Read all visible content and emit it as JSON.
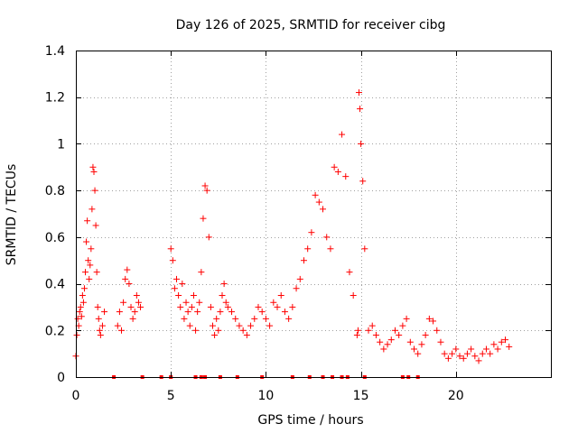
{
  "chart_data": {
    "type": "scatter",
    "title": "Day 126 of 2025, SRMTID for receiver cibg",
    "xlabel": "GPS time / hours",
    "ylabel": "SRMTID / TECUs",
    "xlim": [
      0,
      25
    ],
    "ylim": [
      0,
      1.4
    ],
    "xticks": [
      0,
      5,
      10,
      15,
      20
    ],
    "xtick_labels": [
      "0",
      "5",
      "10",
      "15",
      "20"
    ],
    "yticks": [
      0,
      0.2,
      0.4,
      0.6,
      0.8,
      1.0,
      1.2,
      1.4
    ],
    "ytick_labels": [
      "0",
      "0.2",
      "0.4",
      "0.6",
      "0.8",
      "1",
      "1.2",
      "1.4"
    ],
    "grid": true,
    "marker": "+",
    "color": "#ff0000",
    "series": [
      {
        "name": "SRMTID",
        "x": [
          0.0,
          0.05,
          0.1,
          0.15,
          0.2,
          0.25,
          0.3,
          0.35,
          0.4,
          0.45,
          0.5,
          0.55,
          0.6,
          0.65,
          0.7,
          0.75,
          0.8,
          0.85,
          0.9,
          0.95,
          1.0,
          1.05,
          1.1,
          1.15,
          1.2,
          1.25,
          1.3,
          1.4,
          1.5,
          2.2,
          2.3,
          2.4,
          2.5,
          2.6,
          2.7,
          2.8,
          2.9,
          3.0,
          3.1,
          3.2,
          3.3,
          3.4,
          5.0,
          5.1,
          5.2,
          5.3,
          5.4,
          5.5,
          5.6,
          5.7,
          5.8,
          5.9,
          6.0,
          6.1,
          6.2,
          6.3,
          6.4,
          6.5,
          6.6,
          6.7,
          6.8,
          6.9,
          7.0,
          7.1,
          7.2,
          7.3,
          7.4,
          7.5,
          7.6,
          7.7,
          7.8,
          7.9,
          8.0,
          8.2,
          8.4,
          8.6,
          8.8,
          9.0,
          9.2,
          9.4,
          9.6,
          9.8,
          10.0,
          10.2,
          10.4,
          10.6,
          10.8,
          11.0,
          11.2,
          11.4,
          11.6,
          11.8,
          12.0,
          12.2,
          12.4,
          12.6,
          12.8,
          13.0,
          13.2,
          13.4,
          13.6,
          13.8,
          14.0,
          14.2,
          14.4,
          14.6,
          14.8,
          14.85,
          14.9,
          14.95,
          15.0,
          15.1,
          15.2,
          15.4,
          15.6,
          15.8,
          16.0,
          16.2,
          16.4,
          16.6,
          16.8,
          17.0,
          17.2,
          17.4,
          17.6,
          17.8,
          18.0,
          18.2,
          18.4,
          18.6,
          18.8,
          19.0,
          19.2,
          19.4,
          19.6,
          19.8,
          20.0,
          20.2,
          20.4,
          20.6,
          20.8,
          21.0,
          21.2,
          21.4,
          21.6,
          21.8,
          22.0,
          22.2,
          22.4,
          22.6,
          22.8
        ],
        "y": [
          0.09,
          0.18,
          0.25,
          0.22,
          0.28,
          0.3,
          0.26,
          0.35,
          0.32,
          0.38,
          0.45,
          0.58,
          0.67,
          0.5,
          0.42,
          0.48,
          0.55,
          0.72,
          0.9,
          0.88,
          0.8,
          0.65,
          0.45,
          0.3,
          0.25,
          0.2,
          0.18,
          0.22,
          0.28,
          0.22,
          0.28,
          0.2,
          0.32,
          0.42,
          0.46,
          0.4,
          0.3,
          0.25,
          0.28,
          0.35,
          0.32,
          0.3,
          0.55,
          0.5,
          0.38,
          0.42,
          0.35,
          0.3,
          0.4,
          0.25,
          0.32,
          0.28,
          0.22,
          0.3,
          0.35,
          0.2,
          0.28,
          0.32,
          0.45,
          0.68,
          0.82,
          0.8,
          0.6,
          0.3,
          0.22,
          0.18,
          0.25,
          0.2,
          0.28,
          0.35,
          0.4,
          0.32,
          0.3,
          0.28,
          0.25,
          0.22,
          0.2,
          0.18,
          0.22,
          0.25,
          0.3,
          0.28,
          0.25,
          0.22,
          0.32,
          0.3,
          0.35,
          0.28,
          0.25,
          0.3,
          0.38,
          0.42,
          0.5,
          0.55,
          0.62,
          0.78,
          0.75,
          0.72,
          0.6,
          0.55,
          0.9,
          0.88,
          1.04,
          0.86,
          0.45,
          0.35,
          0.18,
          0.2,
          1.22,
          1.15,
          1.0,
          0.84,
          0.55,
          0.2,
          0.22,
          0.18,
          0.15,
          0.12,
          0.14,
          0.16,
          0.2,
          0.18,
          0.22,
          0.25,
          0.15,
          0.12,
          0.1,
          0.14,
          0.18,
          0.25,
          0.24,
          0.2,
          0.15,
          0.1,
          0.08,
          0.1,
          0.12,
          0.09,
          0.08,
          0.1,
          0.12,
          0.09,
          0.07,
          0.1,
          0.12,
          0.1,
          0.14,
          0.12,
          0.15,
          0.16,
          0.13
        ],
        "zero_points_x": [
          2.0,
          3.5,
          4.5,
          5.0,
          6.3,
          6.6,
          6.8,
          7.6,
          8.5,
          9.8,
          11.4,
          12.3,
          13.0,
          13.5,
          14.0,
          14.3,
          15.2,
          17.2,
          17.5,
          18.0
        ]
      }
    ]
  }
}
